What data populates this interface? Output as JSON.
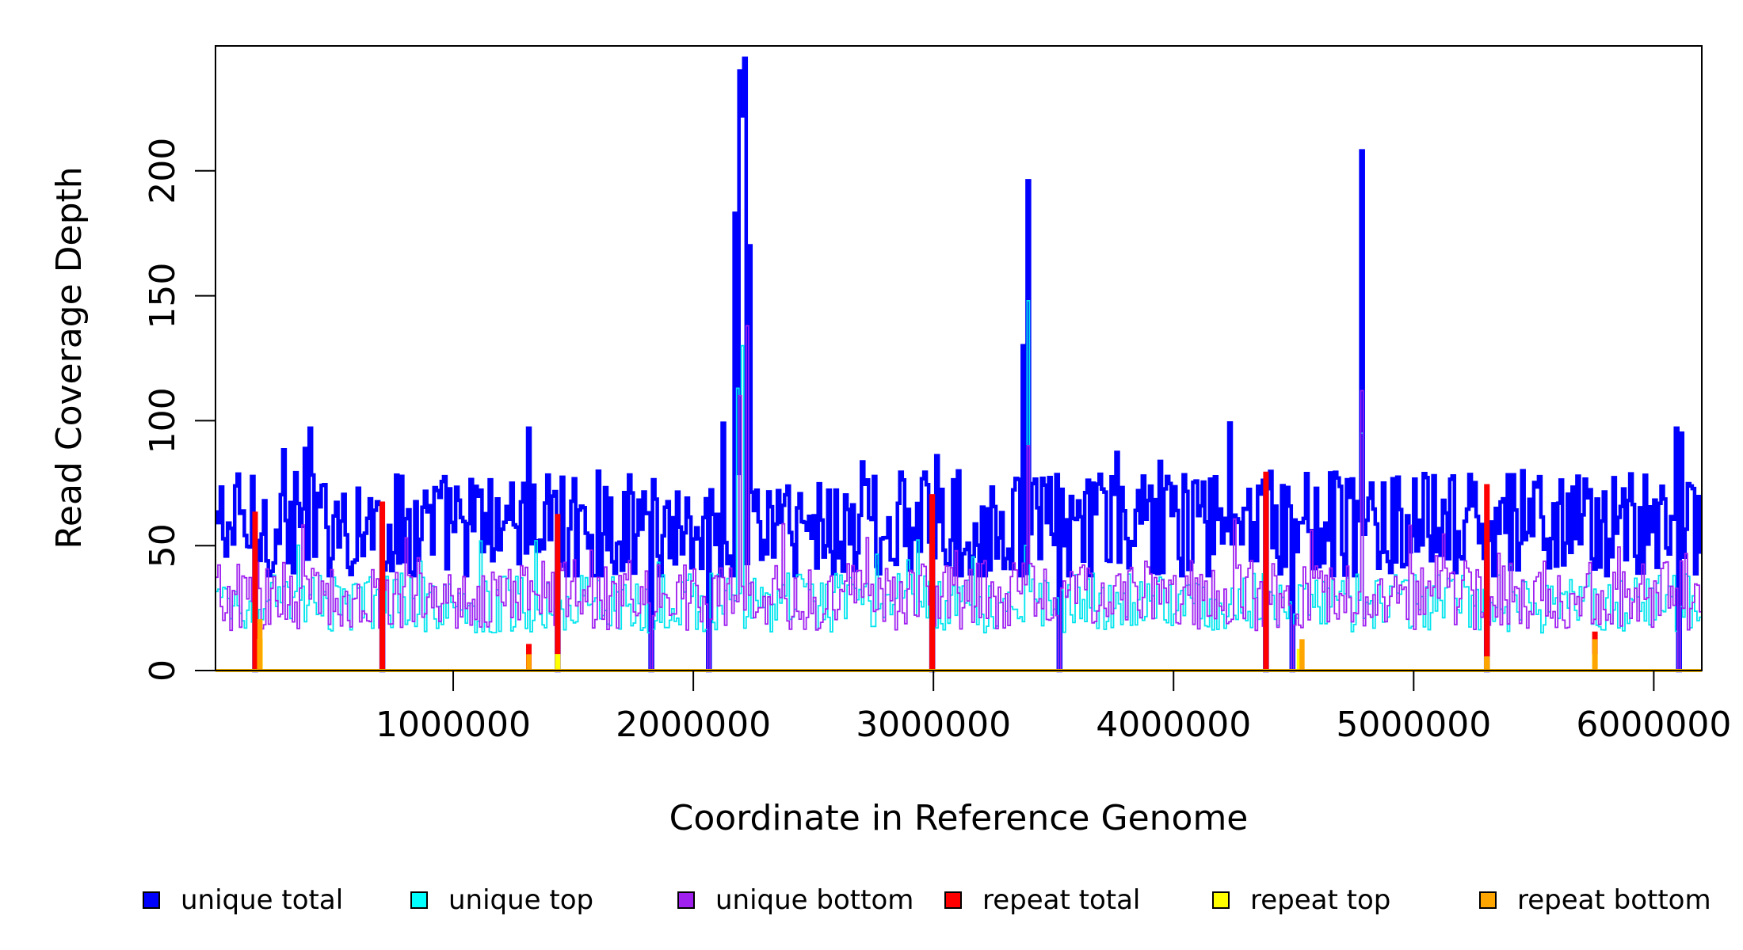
{
  "chart_data": {
    "type": "line",
    "xlabel": "Coordinate in Reference Genome",
    "ylabel": "Read Coverage Depth",
    "xlim": [
      10000,
      6200000
    ],
    "ylim": [
      0,
      250
    ],
    "x_ticks": [
      1000000,
      2000000,
      3000000,
      4000000,
      5000000,
      6000000
    ],
    "x_tick_labels": [
      "1000000",
      "2000000",
      "3000000",
      "4000000",
      "5000000",
      "6000000"
    ],
    "y_ticks": [
      0,
      50,
      100,
      150,
      200
    ],
    "y_tick_labels": [
      "0",
      "50",
      "100",
      "150",
      "200"
    ],
    "bin_size_approx": 10000,
    "series": [
      {
        "name": "unique total",
        "color": "#0000ff",
        "baseline": 58,
        "noise": 22,
        "values_description": "approx 40-97 with peaks",
        "peaks": [
          [
            2170000,
            183
          ],
          [
            2190000,
            240
          ],
          [
            2200000,
            222
          ],
          [
            2210000,
            245
          ],
          [
            2230000,
            170
          ],
          [
            2120000,
            99
          ],
          [
            3370000,
            130
          ],
          [
            3385000,
            196
          ],
          [
            4775000,
            208
          ],
          [
            400000,
            97
          ],
          [
            1310000,
            97
          ],
          [
            6085000,
            97
          ],
          [
            6110000,
            95
          ]
        ],
        "dips": [
          170000,
          700000,
          1430000,
          1820000,
          2060000,
          2990000,
          3520000,
          4380000,
          4490000,
          5300000,
          6100000
        ]
      },
      {
        "name": "unique top",
        "color": "#00e5ee",
        "baseline": 27,
        "noise": 12,
        "peaks": [
          [
            2180000,
            113
          ],
          [
            2200000,
            130
          ],
          [
            3385000,
            148
          ],
          [
            4775000,
            95
          ]
        ],
        "dips": [
          170000,
          700000,
          1430000,
          1820000,
          2060000,
          2990000,
          3520000,
          4380000,
          4490000,
          5300000,
          6100000
        ]
      },
      {
        "name": "unique bottom",
        "color": "#a020f0",
        "baseline": 30,
        "noise": 14,
        "peaks": [
          [
            2190000,
            110
          ],
          [
            2215000,
            138
          ],
          [
            3385000,
            90
          ],
          [
            4775000,
            112
          ]
        ],
        "dips": [
          170000,
          700000,
          1430000,
          1820000,
          2060000,
          2990000,
          3520000,
          4380000,
          4490000,
          5300000,
          6100000
        ]
      },
      {
        "name": "repeat total",
        "color": "#ff0000",
        "baseline": 0,
        "peaks": [
          [
            170000,
            63
          ],
          [
            700000,
            67
          ],
          [
            1310000,
            10
          ],
          [
            1430000,
            62
          ],
          [
            2990000,
            70
          ],
          [
            4380000,
            79
          ],
          [
            5300000,
            74
          ],
          [
            5750000,
            15
          ]
        ]
      },
      {
        "name": "repeat top",
        "color": "#ffff00",
        "baseline": 0,
        "peaks": [
          [
            190000,
            12
          ],
          [
            1430000,
            6
          ],
          [
            4520000,
            8
          ],
          [
            5300000,
            5
          ],
          [
            5750000,
            6
          ]
        ]
      },
      {
        "name": "repeat bottom",
        "color": "#ffa500",
        "baseline": 0,
        "peaks": [
          [
            190000,
            20
          ],
          [
            1310000,
            6
          ],
          [
            4530000,
            12
          ],
          [
            5300000,
            5
          ],
          [
            5750000,
            12
          ]
        ]
      }
    ],
    "legend": [
      {
        "label": "unique total",
        "color": "#0000ff"
      },
      {
        "label": "unique top",
        "color": "#00ffff"
      },
      {
        "label": "unique bottom",
        "color": "#a020f0"
      },
      {
        "label": "repeat total",
        "color": "#ff0000"
      },
      {
        "label": "repeat top",
        "color": "#ffff00"
      },
      {
        "label": "repeat bottom",
        "color": "#ffa500"
      }
    ],
    "legend_position": "bottom",
    "grid": false
  }
}
